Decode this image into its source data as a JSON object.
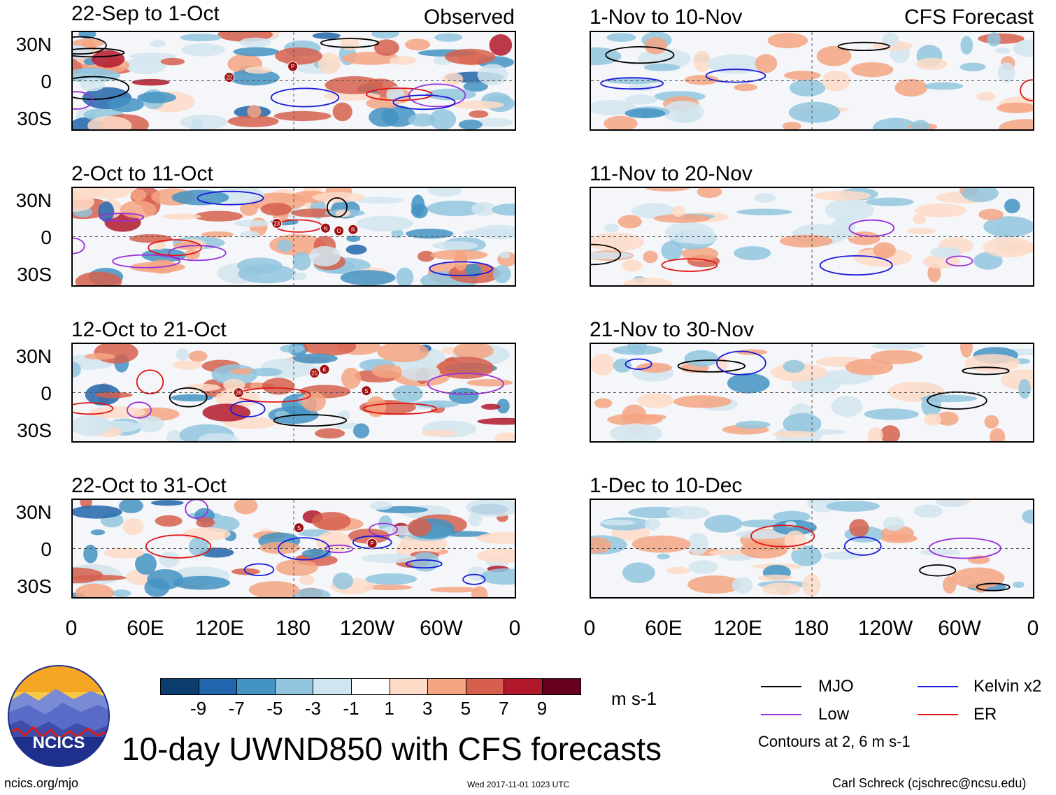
{
  "header": {
    "left_label": "Observed",
    "right_label": "CFS Forecast"
  },
  "panels": {
    "observed": [
      {
        "title": "22-Sep to 1-Oct"
      },
      {
        "title": "2-Oct to 11-Oct"
      },
      {
        "title": "12-Oct to 21-Oct"
      },
      {
        "title": "22-Oct to 31-Oct"
      }
    ],
    "forecast": [
      {
        "title": "1-Nov to 10-Nov"
      },
      {
        "title": "11-Nov to 20-Nov"
      },
      {
        "title": "21-Nov to 30-Nov"
      },
      {
        "title": "1-Dec to 10-Dec"
      }
    ]
  },
  "axes": {
    "lat_labels": [
      "30N",
      "0",
      "30S"
    ],
    "lon_labels": [
      "0",
      "60E",
      "120E",
      "180",
      "120W",
      "60W",
      "0"
    ]
  },
  "colorbar": {
    "ticks": [
      "-9",
      "-7",
      "-5",
      "-3",
      "-1",
      "1",
      "3",
      "5",
      "7",
      "9"
    ],
    "colors": [
      "#0a3d6e",
      "#2166ac",
      "#4393c3",
      "#92c5de",
      "#d1e5f0",
      "#ffffff",
      "#fddbc7",
      "#f4a582",
      "#d6604d",
      "#b2182b",
      "#67001f"
    ],
    "units": "m s-1"
  },
  "legend": {
    "mjo": "MJO",
    "kelvin": "Kelvin x2",
    "low": "Low",
    "er": "ER",
    "contours_note": "Contours at 2, 6 m s-1",
    "colors": {
      "mjo": "#000000",
      "kelvin": "#1a1adb",
      "low": "#9b30d9",
      "er": "#e01414"
    }
  },
  "storm_markers": {
    "observed": [
      [
        "22",
        "P"
      ],
      [
        "23",
        "R",
        "N",
        "O"
      ],
      [
        "K",
        "26",
        "25",
        "S"
      ],
      [
        "P",
        "S"
      ]
    ]
  },
  "footer": {
    "logo_text": "NCICS",
    "main_title": "10-day UWND850 with CFS forecasts",
    "url": "ncics.org/mjo",
    "timestamp": "Wed 2017-11-01 1023 UTC",
    "credit": "Carl Schreck (cjschrec@ncsu.edu)"
  }
}
